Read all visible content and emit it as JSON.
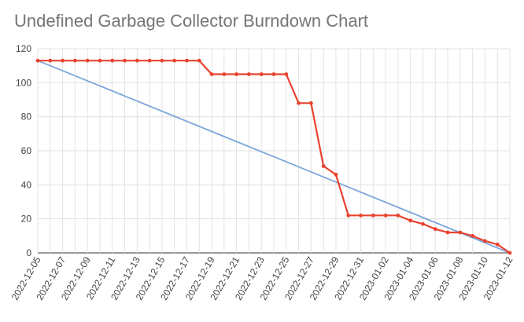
{
  "chart_data": {
    "type": "line",
    "title": "Undefined Garbage Collector Burndown Chart",
    "xlabel": "",
    "ylabel": "",
    "ylim": [
      0,
      120
    ],
    "y_ticks": [
      0,
      20,
      40,
      60,
      80,
      100,
      120
    ],
    "x_tick_labels": [
      "2022-12-05",
      "2022-12-07",
      "2022-12-09",
      "2022-12-11",
      "2022-12-13",
      "2022-12-15",
      "2022-12-17",
      "2022-12-19",
      "2022-12-21",
      "2022-12-23",
      "2022-12-25",
      "2022-12-27",
      "2022-12-29",
      "2022-12-31",
      "2023-01-02",
      "2023-01-04",
      "2023-01-06",
      "2023-01-08",
      "2023-01-10",
      "2023-01-12"
    ],
    "x_dates": [
      "2022-12-05",
      "2022-12-06",
      "2022-12-07",
      "2022-12-08",
      "2022-12-09",
      "2022-12-10",
      "2022-12-11",
      "2022-12-12",
      "2022-12-13",
      "2022-12-14",
      "2022-12-15",
      "2022-12-16",
      "2022-12-17",
      "2022-12-18",
      "2022-12-19",
      "2022-12-20",
      "2022-12-21",
      "2022-12-22",
      "2022-12-23",
      "2022-12-24",
      "2022-12-25",
      "2022-12-26",
      "2022-12-27",
      "2022-12-28",
      "2022-12-29",
      "2022-12-30",
      "2022-12-31",
      "2023-01-01",
      "2023-01-02",
      "2023-01-03",
      "2023-01-04",
      "2023-01-05",
      "2023-01-06",
      "2023-01-07",
      "2023-01-08",
      "2023-01-09",
      "2023-01-10",
      "2023-01-11",
      "2023-01-12"
    ],
    "grid": true,
    "legend": "none",
    "series": [
      {
        "color": "#7ba6db",
        "markers": false,
        "points": [
          {
            "x": "2022-12-05",
            "y": 113
          },
          {
            "x": "2023-01-12",
            "y": 0
          }
        ]
      },
      {
        "color": "#e8432f",
        "markers": true,
        "values": [
          113,
          113,
          113,
          113,
          113,
          113,
          113,
          113,
          113,
          113,
          113,
          113,
          113,
          113,
          105,
          105,
          105,
          105,
          105,
          105,
          105,
          88,
          88,
          51,
          46,
          22,
          22,
          22,
          22,
          22,
          19,
          17,
          14,
          12,
          12,
          10,
          7,
          5,
          0
        ]
      }
    ]
  }
}
